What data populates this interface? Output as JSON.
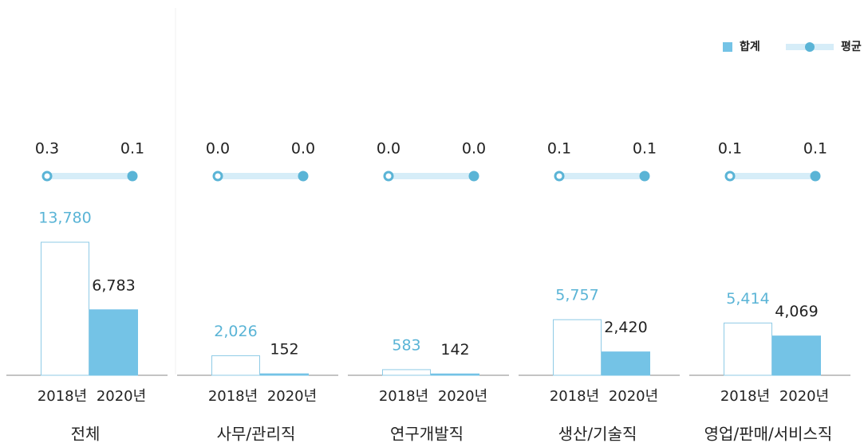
{
  "chart_data": {
    "type": "bar-dumbbell",
    "categories": [
      "전체",
      "사무/관리직",
      "연구개발직",
      "생산/기술직",
      "영업/판매/서비스직"
    ],
    "years": [
      "2018년",
      "2020년"
    ],
    "series": [
      {
        "name": "합계",
        "color": "#74c3e6",
        "values": [
          [
            13780,
            6783
          ],
          [
            2026,
            152
          ],
          [
            583,
            142
          ],
          [
            5757,
            2420
          ],
          [
            5414,
            4069
          ]
        ],
        "value_labels": [
          [
            "13,780",
            "6,783"
          ],
          [
            "2,026",
            "152"
          ],
          [
            "583",
            "142"
          ],
          [
            "5,757",
            "2,420"
          ],
          [
            "5,414",
            "4,069"
          ]
        ]
      },
      {
        "name": "평균",
        "color": "#5ab4d6",
        "values": [
          [
            0.3,
            0.1
          ],
          [
            0.0,
            0.0
          ],
          [
            0.0,
            0.0
          ],
          [
            0.1,
            0.1
          ],
          [
            0.1,
            0.1
          ]
        ],
        "value_labels": [
          [
            "0.3",
            "0.1"
          ],
          [
            "0.0",
            "0.0"
          ],
          [
            "0.0",
            "0.0"
          ],
          [
            "0.1",
            "0.1"
          ],
          [
            "0.1",
            "0.1"
          ]
        ]
      }
    ]
  }
}
